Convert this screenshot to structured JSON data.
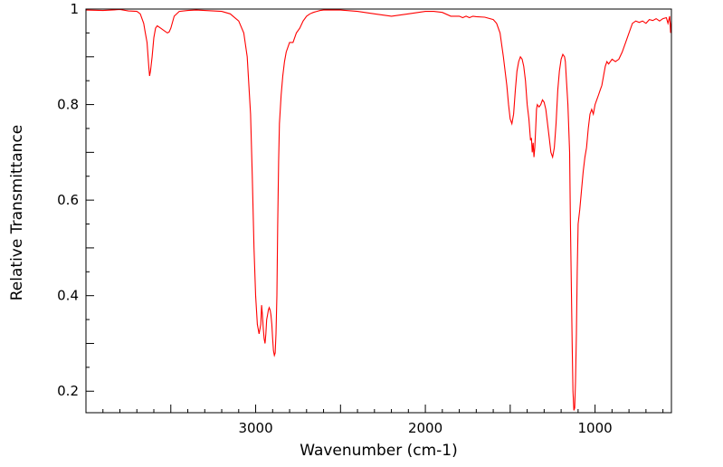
{
  "chart_data": {
    "type": "line",
    "title": "",
    "xlabel": "Wavenumber (cm-1)",
    "ylabel": "Relative Transmittance",
    "xlim": [
      4000,
      550
    ],
    "ylim": [
      0.155,
      1.0
    ],
    "x_ticks": [
      3000,
      2000,
      1000
    ],
    "x_tick_labels": [
      "3000",
      "2000",
      "1000"
    ],
    "y_ticks": [
      1.0,
      0.8,
      0.6,
      0.4,
      0.2
    ],
    "y_tick_labels": [
      "1",
      "0.8",
      "0.6",
      "0.4",
      "0.2"
    ],
    "grid": false,
    "legend": "none",
    "line_color": "#ff0000",
    "series": [
      {
        "x": [
          4000,
          3900,
          3800,
          3750,
          3700,
          3680,
          3660,
          3650,
          3640,
          3630,
          3625,
          3620,
          3610,
          3600,
          3590,
          3580,
          3560,
          3540,
          3520,
          3510,
          3500,
          3480,
          3450,
          3400,
          3350,
          3300,
          3250,
          3200,
          3150,
          3100,
          3070,
          3050,
          3030,
          3020,
          3010,
          3000,
          2990,
          2980,
          2970,
          2965,
          2960,
          2955,
          2950,
          2945,
          2940,
          2935,
          2930,
          2925,
          2920,
          2915,
          2910,
          2905,
          2900,
          2895,
          2890,
          2885,
          2880,
          2875,
          2870,
          2865,
          2860,
          2850,
          2840,
          2830,
          2820,
          2800,
          2780,
          2760,
          2740,
          2720,
          2700,
          2680,
          2660,
          2640,
          2620,
          2600,
          2550,
          2500,
          2400,
          2300,
          2200,
          2100,
          2000,
          1950,
          1900,
          1850,
          1800,
          1780,
          1760,
          1740,
          1720,
          1700,
          1650,
          1600,
          1580,
          1560,
          1540,
          1520,
          1510,
          1500,
          1490,
          1480,
          1470,
          1460,
          1450,
          1440,
          1430,
          1420,
          1410,
          1400,
          1390,
          1380,
          1375,
          1370,
          1365,
          1360,
          1355,
          1350,
          1345,
          1340,
          1330,
          1320,
          1310,
          1300,
          1290,
          1280,
          1270,
          1260,
          1250,
          1240,
          1230,
          1220,
          1210,
          1200,
          1190,
          1180,
          1175,
          1170,
          1160,
          1150,
          1145,
          1140,
          1135,
          1130,
          1125,
          1120,
          1115,
          1110,
          1105,
          1100,
          1090,
          1080,
          1070,
          1060,
          1050,
          1040,
          1030,
          1020,
          1010,
          1000,
          990,
          980,
          970,
          960,
          950,
          940,
          930,
          920,
          900,
          880,
          860,
          840,
          820,
          800,
          780,
          760,
          740,
          720,
          700,
          680,
          660,
          640,
          620,
          600,
          580,
          570,
          560,
          555,
          550
        ],
        "y": [
          0.998,
          0.997,
          0.999,
          0.996,
          0.995,
          0.99,
          0.97,
          0.95,
          0.93,
          0.88,
          0.86,
          0.87,
          0.9,
          0.94,
          0.96,
          0.965,
          0.96,
          0.955,
          0.95,
          0.952,
          0.96,
          0.985,
          0.995,
          0.997,
          0.998,
          0.997,
          0.996,
          0.995,
          0.99,
          0.975,
          0.95,
          0.9,
          0.78,
          0.65,
          0.5,
          0.4,
          0.34,
          0.32,
          0.34,
          0.38,
          0.36,
          0.33,
          0.31,
          0.3,
          0.32,
          0.35,
          0.36,
          0.37,
          0.375,
          0.37,
          0.36,
          0.34,
          0.31,
          0.285,
          0.275,
          0.28,
          0.32,
          0.4,
          0.55,
          0.68,
          0.76,
          0.82,
          0.86,
          0.89,
          0.91,
          0.93,
          0.93,
          0.95,
          0.96,
          0.975,
          0.985,
          0.99,
          0.993,
          0.995,
          0.997,
          0.998,
          0.998,
          0.998,
          0.995,
          0.99,
          0.985,
          0.99,
          0.995,
          0.995,
          0.993,
          0.985,
          0.985,
          0.982,
          0.985,
          0.982,
          0.985,
          0.984,
          0.983,
          0.978,
          0.97,
          0.95,
          0.9,
          0.84,
          0.8,
          0.77,
          0.76,
          0.78,
          0.83,
          0.87,
          0.89,
          0.9,
          0.895,
          0.88,
          0.85,
          0.8,
          0.77,
          0.725,
          0.73,
          0.7,
          0.72,
          0.69,
          0.71,
          0.75,
          0.79,
          0.8,
          0.795,
          0.8,
          0.81,
          0.805,
          0.79,
          0.76,
          0.73,
          0.7,
          0.69,
          0.71,
          0.76,
          0.83,
          0.87,
          0.895,
          0.905,
          0.9,
          0.89,
          0.86,
          0.8,
          0.7,
          0.55,
          0.42,
          0.3,
          0.2,
          0.16,
          0.165,
          0.22,
          0.32,
          0.45,
          0.55,
          0.58,
          0.62,
          0.66,
          0.69,
          0.71,
          0.75,
          0.78,
          0.79,
          0.78,
          0.8,
          0.81,
          0.82,
          0.83,
          0.84,
          0.86,
          0.88,
          0.89,
          0.885,
          0.895,
          0.89,
          0.895,
          0.91,
          0.93,
          0.95,
          0.97,
          0.975,
          0.972,
          0.975,
          0.97,
          0.978,
          0.976,
          0.98,
          0.975,
          0.98,
          0.982,
          0.97,
          0.985,
          0.95,
          0.975
        ]
      }
    ]
  }
}
